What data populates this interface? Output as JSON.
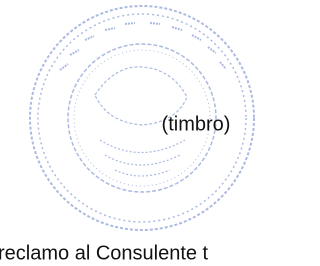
{
  "stamp_label": "(timbro)",
  "footer_text": "reclamo al Consulente t"
}
